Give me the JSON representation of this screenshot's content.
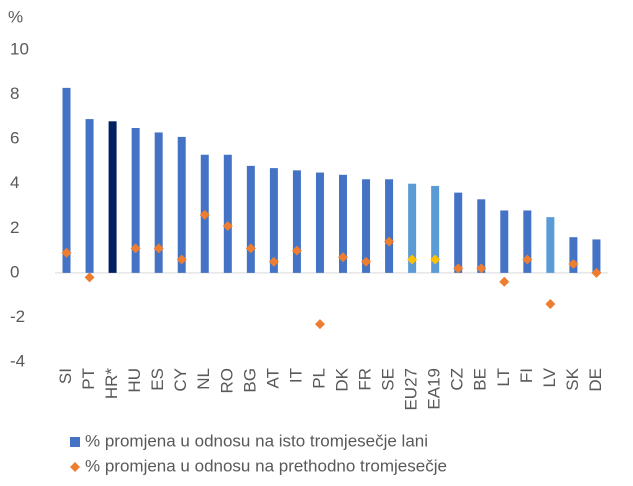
{
  "chart_data": {
    "type": "bar",
    "y_unit": "%",
    "categories": [
      "SI",
      "PT",
      "HR*",
      "HU",
      "ES",
      "CY",
      "NL",
      "RO",
      "BG",
      "AT",
      "IT",
      "PL",
      "DK",
      "FR",
      "SE",
      "EU27",
      "EA19",
      "CZ",
      "BE",
      "LT",
      "FI",
      "LV",
      "SK",
      "DE"
    ],
    "series": [
      {
        "name": "% promjena u odnosu na isto tromjesečje lani",
        "type": "bar",
        "color": "#4472c4",
        "colors": [
          "#4472c4",
          "#4472c4",
          "#002060",
          "#4472c4",
          "#4472c4",
          "#4472c4",
          "#4472c4",
          "#4472c4",
          "#4472c4",
          "#4472c4",
          "#4472c4",
          "#4472c4",
          "#4472c4",
          "#4472c4",
          "#4472c4",
          "#5b9bd5",
          "#5b9bd5",
          "#4472c4",
          "#4472c4",
          "#4472c4",
          "#4472c4",
          "#5b9bd5",
          "#4472c4",
          "#4472c4"
        ],
        "values": [
          8.3,
          6.9,
          6.8,
          6.5,
          6.3,
          6.1,
          5.3,
          5.3,
          4.8,
          4.7,
          4.6,
          4.5,
          4.4,
          4.2,
          4.2,
          4.0,
          3.9,
          3.6,
          3.3,
          2.8,
          2.8,
          2.5,
          1.6,
          1.5
        ]
      },
      {
        "name": "% promjena u odnosu na prethodno tromjesečje",
        "type": "scatter",
        "color": "#ed7d31",
        "colors": [
          "#ed7d31",
          "#ed7d31",
          "#ed7d31",
          "#ed7d31",
          "#ed7d31",
          "#ed7d31",
          "#ed7d31",
          "#ed7d31",
          "#ed7d31",
          "#ed7d31",
          "#ed7d31",
          "#ed7d31",
          "#ed7d31",
          "#ed7d31",
          "#ed7d31",
          "#ffc000",
          "#ffc000",
          "#ed7d31",
          "#ed7d31",
          "#ed7d31",
          "#ed7d31",
          "#ed7d31",
          "#ed7d31",
          "#ed7d31"
        ],
        "values": [
          0.9,
          -0.2,
          null,
          1.1,
          1.1,
          0.6,
          2.6,
          2.1,
          1.1,
          0.5,
          1.0,
          -2.3,
          0.7,
          0.5,
          1.4,
          0.6,
          0.6,
          0.2,
          0.2,
          -0.4,
          0.6,
          -1.4,
          0.4,
          0.0
        ]
      }
    ],
    "ylim": [
      -4,
      10
    ],
    "yticks": [
      -4,
      -2,
      0,
      2,
      4,
      6,
      8,
      10
    ],
    "grid": false
  }
}
